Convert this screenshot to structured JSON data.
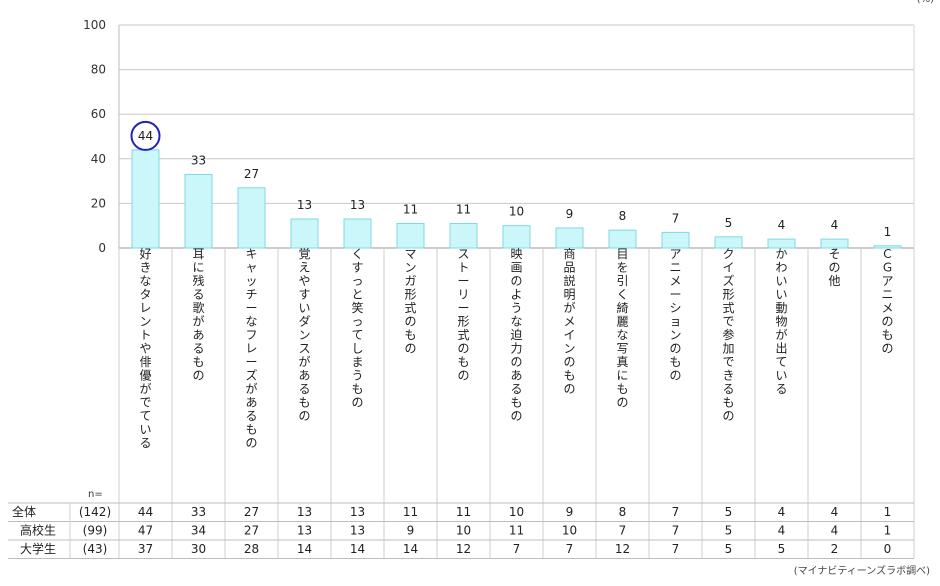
{
  "chart_data": {
    "type": "bar",
    "unit_label": "(%)",
    "ylim": [
      0,
      100
    ],
    "yticks": [
      "100",
      "80",
      "60",
      "40",
      "20",
      "0"
    ],
    "categories": [
      "好きなタレントや俳優がでている",
      "耳に残る歌があるもの",
      "キャッチーなフレーズがあるもの",
      "覚えやすいダンスがあるもの",
      "くすっと笑ってしまうもの",
      "マンガ形式のもの",
      "ストーリー形式のもの",
      "映画のような迫力のあるもの",
      "商品説明がメインのもの",
      "目を引く綺麗な写真にもの",
      "アニメーションのもの",
      "クイズ形式で参加できるもの",
      "かわいい動物が出ている",
      "その他",
      "ＣＧアニメのもの"
    ],
    "values": [
      44,
      33,
      27,
      13,
      13,
      11,
      11,
      10,
      9,
      8,
      7,
      5,
      4,
      4,
      1
    ],
    "highlight_index": 0,
    "bar_fill": "#ccf7fa",
    "bar_stroke": "#7fd8e0",
    "highlight_color": "#2222bb",
    "grid": true,
    "table": {
      "n_label": "n=",
      "rows": [
        {
          "group": "全体",
          "n": "(142)",
          "values": [
            44,
            33,
            27,
            13,
            13,
            11,
            11,
            10,
            9,
            8,
            7,
            5,
            4,
            4,
            1
          ]
        },
        {
          "group": "高校生",
          "n": "(99)",
          "values": [
            47,
            34,
            27,
            13,
            13,
            9,
            10,
            11,
            10,
            7,
            7,
            5,
            4,
            4,
            1
          ]
        },
        {
          "group": "大学生",
          "n": "(43)",
          "values": [
            37,
            30,
            28,
            14,
            14,
            14,
            12,
            7,
            7,
            12,
            7,
            5,
            5,
            2,
            0
          ]
        }
      ]
    },
    "source": "(マイナビティーンズラボ調べ)"
  }
}
